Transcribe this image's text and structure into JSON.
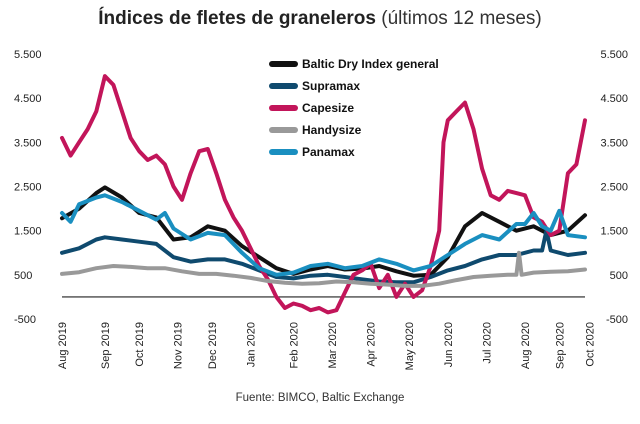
{
  "title": {
    "bold": "Índices de fletes de graneleros",
    "light": " (últimos 12 meses)"
  },
  "source": "Fuente: BIMCO, Baltic Exchange",
  "chart_data": {
    "type": "line",
    "title": "Índices de fletes de graneleros (últimos 12 meses)",
    "xlabel": "",
    "ylabel": "",
    "ylim": [
      -500,
      5500
    ],
    "yticks": [
      -500,
      500,
      1500,
      2500,
      3500,
      4500,
      5500
    ],
    "ytick_labels": [
      "-500",
      "500",
      "1.500",
      "2.500",
      "3.500",
      "4.500",
      "5.500"
    ],
    "x_range": [
      0,
      61
    ],
    "xticks": [
      0,
      5,
      10,
      15,
      20,
      25,
      30,
      35,
      40,
      45,
      50,
      55,
      60
    ],
    "xtick_labels": [
      "Aug 2019",
      "Sep 2019",
      "Oct 2019",
      "Nov 2019",
      "Dec 2019",
      "Jan 2020",
      "Feb 2020",
      "Mar 2020",
      "Apr 2020",
      "May 2020",
      "Jun 2020",
      "Jul 2020",
      "Aug 2020",
      "Sep 2020",
      "Oct 2020"
    ],
    "xtick_positions": [
      0,
      5,
      9,
      13.5,
      17.5,
      22,
      27,
      31.5,
      36,
      40.5,
      45,
      49.5,
      54,
      58,
      61.5
    ],
    "legend": "top-center",
    "series": [
      {
        "name": "Baltic Dry Index general",
        "color": "#111111",
        "values": [
          [
            0,
            1780
          ],
          [
            2,
            2000
          ],
          [
            4,
            2350
          ],
          [
            5,
            2480
          ],
          [
            7,
            2250
          ],
          [
            9,
            1900
          ],
          [
            11,
            1800
          ],
          [
            13,
            1300
          ],
          [
            15,
            1350
          ],
          [
            17,
            1600
          ],
          [
            19,
            1500
          ],
          [
            21,
            1150
          ],
          [
            23,
            900
          ],
          [
            25,
            650
          ],
          [
            27,
            520
          ],
          [
            29,
            620
          ],
          [
            31,
            700
          ],
          [
            33,
            620
          ],
          [
            35,
            640
          ],
          [
            37,
            700
          ],
          [
            39,
            580
          ],
          [
            41,
            480
          ],
          [
            43,
            500
          ],
          [
            45,
            900
          ],
          [
            47,
            1600
          ],
          [
            49,
            1900
          ],
          [
            51,
            1700
          ],
          [
            53,
            1500
          ],
          [
            55,
            1600
          ],
          [
            57,
            1400
          ],
          [
            59,
            1500
          ],
          [
            61,
            1850
          ]
        ]
      },
      {
        "name": "Supramax",
        "color": "#0f4a6e",
        "values": [
          [
            0,
            1000
          ],
          [
            2,
            1100
          ],
          [
            4,
            1300
          ],
          [
            5,
            1350
          ],
          [
            7,
            1300
          ],
          [
            9,
            1250
          ],
          [
            11,
            1200
          ],
          [
            13,
            900
          ],
          [
            15,
            800
          ],
          [
            17,
            850
          ],
          [
            19,
            850
          ],
          [
            21,
            750
          ],
          [
            23,
            600
          ],
          [
            25,
            450
          ],
          [
            27,
            420
          ],
          [
            29,
            480
          ],
          [
            31,
            500
          ],
          [
            33,
            450
          ],
          [
            35,
            400
          ],
          [
            37,
            350
          ],
          [
            39,
            330
          ],
          [
            41,
            330
          ],
          [
            43,
            450
          ],
          [
            45,
            600
          ],
          [
            47,
            700
          ],
          [
            49,
            850
          ],
          [
            51,
            950
          ],
          [
            53,
            950
          ],
          [
            55,
            1050
          ],
          [
            56,
            1050
          ],
          [
            56.5,
            1500
          ],
          [
            57,
            1050
          ],
          [
            59,
            950
          ],
          [
            61,
            1000
          ]
        ]
      },
      {
        "name": "Capesize",
        "color": "#c2155a",
        "values": [
          [
            0,
            3600
          ],
          [
            1,
            3200
          ],
          [
            2,
            3500
          ],
          [
            3,
            3800
          ],
          [
            4,
            4200
          ],
          [
            5,
            5000
          ],
          [
            6,
            4800
          ],
          [
            7,
            4200
          ],
          [
            8,
            3600
          ],
          [
            9,
            3300
          ],
          [
            10,
            3100
          ],
          [
            11,
            3200
          ],
          [
            12,
            3000
          ],
          [
            13,
            2500
          ],
          [
            14,
            2200
          ],
          [
            15,
            2800
          ],
          [
            16,
            3300
          ],
          [
            17,
            3350
          ],
          [
            18,
            2800
          ],
          [
            19,
            2200
          ],
          [
            20,
            1800
          ],
          [
            21,
            1500
          ],
          [
            22,
            1100
          ],
          [
            23,
            700
          ],
          [
            24,
            400
          ],
          [
            25,
            0
          ],
          [
            26,
            -250
          ],
          [
            27,
            -150
          ],
          [
            28,
            -200
          ],
          [
            29,
            -300
          ],
          [
            30,
            -250
          ],
          [
            31,
            -350
          ],
          [
            32,
            -300
          ],
          [
            33,
            100
          ],
          [
            34,
            500
          ],
          [
            35,
            600
          ],
          [
            36,
            750
          ],
          [
            37,
            200
          ],
          [
            38,
            500
          ],
          [
            39,
            0
          ],
          [
            40,
            300
          ],
          [
            41,
            0
          ],
          [
            42,
            150
          ],
          [
            43,
            700
          ],
          [
            44,
            1500
          ],
          [
            44.5,
            3500
          ],
          [
            45,
            4000
          ],
          [
            46,
            4200
          ],
          [
            47,
            4400
          ],
          [
            48,
            3800
          ],
          [
            49,
            2900
          ],
          [
            50,
            2300
          ],
          [
            51,
            2200
          ],
          [
            52,
            2400
          ],
          [
            53,
            2350
          ],
          [
            54,
            2300
          ],
          [
            55,
            1800
          ],
          [
            56,
            1700
          ],
          [
            57,
            1400
          ],
          [
            58,
            1500
          ],
          [
            59,
            2800
          ],
          [
            60,
            3000
          ],
          [
            61,
            4000
          ]
        ]
      },
      {
        "name": "Handysize",
        "color": "#999999",
        "values": [
          [
            0,
            520
          ],
          [
            2,
            560
          ],
          [
            4,
            650
          ],
          [
            6,
            700
          ],
          [
            8,
            680
          ],
          [
            10,
            650
          ],
          [
            12,
            650
          ],
          [
            14,
            580
          ],
          [
            16,
            520
          ],
          [
            18,
            520
          ],
          [
            20,
            480
          ],
          [
            22,
            430
          ],
          [
            24,
            360
          ],
          [
            26,
            320
          ],
          [
            28,
            300
          ],
          [
            30,
            310
          ],
          [
            32,
            350
          ],
          [
            34,
            330
          ],
          [
            36,
            300
          ],
          [
            38,
            280
          ],
          [
            40,
            250
          ],
          [
            42,
            250
          ],
          [
            44,
            300
          ],
          [
            46,
            380
          ],
          [
            48,
            450
          ],
          [
            50,
            480
          ],
          [
            52,
            500
          ],
          [
            53,
            500
          ],
          [
            53.3,
            1000
          ],
          [
            53.6,
            500
          ],
          [
            55,
            550
          ],
          [
            57,
            570
          ],
          [
            59,
            580
          ],
          [
            61,
            620
          ]
        ]
      },
      {
        "name": "Panamax",
        "color": "#1a8fc0",
        "values": [
          [
            0,
            1900
          ],
          [
            1,
            1700
          ],
          [
            2,
            2100
          ],
          [
            4,
            2250
          ],
          [
            5,
            2300
          ],
          [
            7,
            2150
          ],
          [
            9,
            1950
          ],
          [
            11,
            1750
          ],
          [
            12,
            1900
          ],
          [
            13,
            1550
          ],
          [
            15,
            1300
          ],
          [
            17,
            1450
          ],
          [
            19,
            1400
          ],
          [
            21,
            1000
          ],
          [
            23,
            650
          ],
          [
            25,
            500
          ],
          [
            27,
            550
          ],
          [
            29,
            700
          ],
          [
            31,
            750
          ],
          [
            33,
            650
          ],
          [
            35,
            700
          ],
          [
            37,
            850
          ],
          [
            39,
            750
          ],
          [
            41,
            600
          ],
          [
            43,
            700
          ],
          [
            45,
            950
          ],
          [
            47,
            1200
          ],
          [
            49,
            1400
          ],
          [
            51,
            1300
          ],
          [
            53,
            1650
          ],
          [
            54,
            1650
          ],
          [
            55,
            1900
          ],
          [
            56,
            1600
          ],
          [
            57,
            1500
          ],
          [
            58,
            1950
          ],
          [
            59,
            1400
          ],
          [
            61,
            1350
          ]
        ]
      }
    ]
  }
}
